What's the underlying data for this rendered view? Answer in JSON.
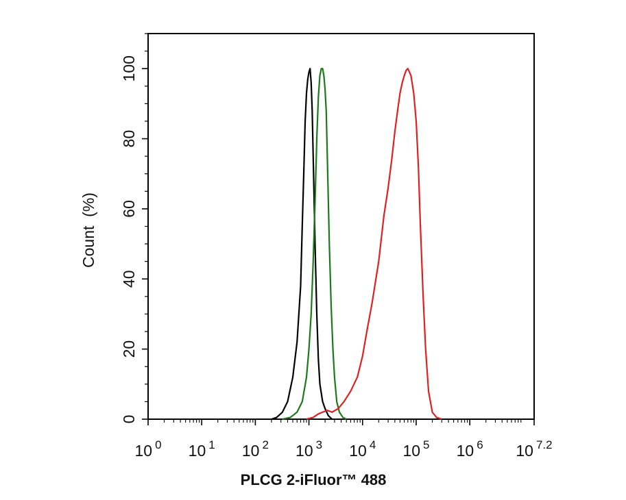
{
  "chart_data": {
    "type": "line",
    "title": "",
    "xlabel": "PLCG 2-iFluor™ 488",
    "ylabel": "Count  (%)",
    "x_scale": "log",
    "xlim": [
      1,
      15848931.92
    ],
    "ylim": [
      0,
      110
    ],
    "grid": false,
    "legend": "none",
    "x_ticks": [
      {
        "base": "10",
        "exp": "0",
        "value": 1
      },
      {
        "base": "10",
        "exp": "1",
        "value": 10
      },
      {
        "base": "10",
        "exp": "2",
        "value": 100
      },
      {
        "base": "10",
        "exp": "3",
        "value": 1000
      },
      {
        "base": "10",
        "exp": "4",
        "value": 10000
      },
      {
        "base": "10",
        "exp": "5",
        "value": 100000
      },
      {
        "base": "10",
        "exp": "6",
        "value": 1000000
      },
      {
        "base": "10",
        "exp": "7.2",
        "value": 15848931.92
      }
    ],
    "y_ticks": [
      0,
      20,
      40,
      60,
      80,
      100
    ],
    "series": [
      {
        "color": "#000000",
        "x": [
          200,
          250,
          320,
          400,
          500,
          600,
          700,
          750,
          800,
          850,
          900,
          950,
          1000,
          1050,
          1100,
          1150,
          1200,
          1300,
          1400,
          1500,
          1600,
          1800,
          2000,
          2300,
          2700
        ],
        "y": [
          0,
          0.5,
          2,
          5,
          12,
          22,
          38,
          55,
          70,
          85,
          93,
          97,
          99,
          100,
          96,
          88,
          75,
          50,
          30,
          17,
          10,
          5,
          3,
          1,
          0
        ]
      },
      {
        "color": "#1a7a1a",
        "x": [
          320,
          450,
          600,
          750,
          900,
          1000,
          1100,
          1200,
          1300,
          1400,
          1500,
          1600,
          1700,
          1800,
          1900,
          2000,
          2100,
          2200,
          2400,
          2600,
          2800,
          3000,
          3300,
          3700,
          4300,
          5000
        ],
        "y": [
          0,
          0.5,
          2,
          5,
          12,
          20,
          30,
          45,
          62,
          80,
          92,
          98,
          100,
          100,
          98,
          94,
          88,
          75,
          50,
          32,
          20,
          12,
          5,
          2,
          0.5,
          0
        ]
      },
      {
        "color": "#e02020",
        "x": [
          900,
          1200,
          1500,
          1800,
          2200,
          2700,
          3500,
          4500,
          6000,
          8000,
          10000,
          12000,
          15000,
          20000,
          25000,
          30000,
          35000,
          40000,
          45000,
          50000,
          55000,
          60000,
          65000,
          70000,
          75000,
          80000,
          90000,
          100000,
          110000,
          120000,
          135000,
          150000,
          170000,
          200000,
          240000,
          300000
        ],
        "y": [
          0,
          0.5,
          1.5,
          2,
          2.5,
          2,
          3,
          5,
          8,
          12,
          18,
          25,
          33,
          45,
          58,
          66,
          74,
          82,
          88,
          93,
          96,
          98,
          99.5,
          100,
          99,
          98,
          93,
          85,
          72,
          55,
          35,
          20,
          8,
          2,
          0.5,
          0
        ]
      }
    ]
  }
}
